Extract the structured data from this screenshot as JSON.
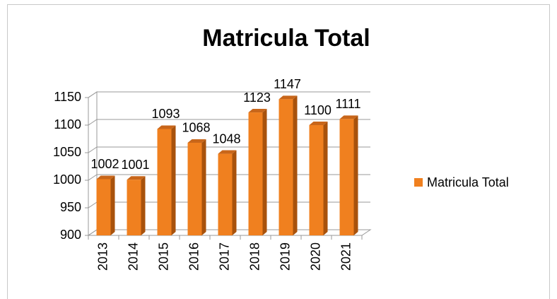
{
  "chart_data": {
    "type": "bar",
    "title": "Matricula Total",
    "categories": [
      "2013",
      "2014",
      "2015",
      "2016",
      "2017",
      "2018",
      "2019",
      "2020",
      "2021"
    ],
    "series": [
      {
        "name": "Matricula Total",
        "color": "#f0801f",
        "values": [
          1002,
          1001,
          1093,
          1068,
          1048,
          1123,
          1147,
          1100,
          1111
        ]
      }
    ],
    "ylim": [
      900,
      1150
    ],
    "yticks": [
      900,
      950,
      1000,
      1050,
      1100,
      1150
    ],
    "grid": true,
    "legend": "right"
  }
}
